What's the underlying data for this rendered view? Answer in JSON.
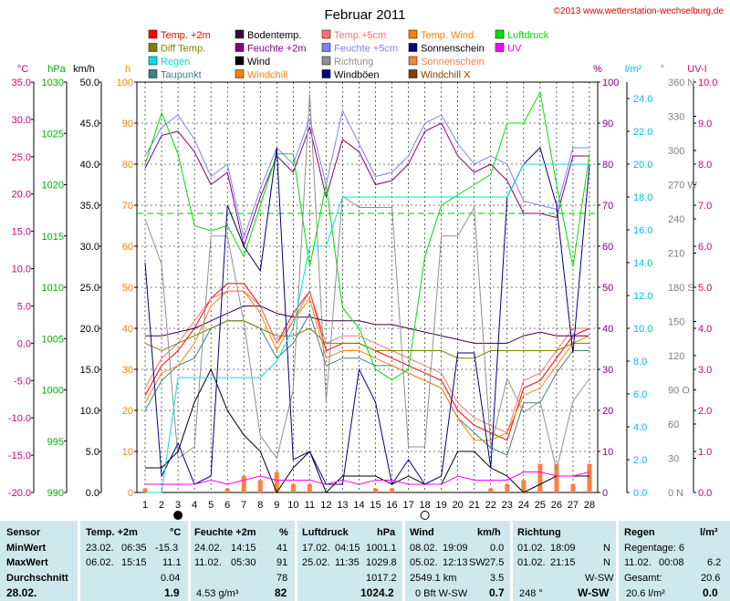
{
  "chart_data": {
    "type": "line",
    "title": "Februar 2011",
    "copyright": "©2013 www.wetterstation-wechselburg.de",
    "days": [
      1,
      2,
      3,
      4,
      5,
      6,
      7,
      8,
      9,
      10,
      11,
      12,
      13,
      14,
      15,
      16,
      17,
      18,
      19,
      20,
      21,
      22,
      23,
      24,
      25,
      26,
      27,
      28
    ],
    "axes": {
      "temp_c": {
        "unit": "°C",
        "color": "#d0007a",
        "ticks": [
          "35.0",
          "30.0",
          "25.0",
          "20.0",
          "15.0",
          "10.0",
          "5.0",
          "0.0",
          "-5.0",
          "-10.0",
          "-15.0",
          "-20.0"
        ],
        "range": [
          -20,
          35
        ]
      },
      "pressure_hpa": {
        "unit": "hPa",
        "color": "#00b000",
        "ticks": [
          "1030",
          "1025",
          "1020",
          "1015",
          "1010",
          "1005",
          "1000",
          "995",
          "990"
        ],
        "range": [
          990,
          1030
        ]
      },
      "wind_kmh": {
        "unit": "km/h",
        "color": "#000000",
        "ticks": [
          "50.0",
          "45.0",
          "40.0",
          "35.0",
          "30.0",
          "25.0",
          "20.0",
          "15.0",
          "10.0",
          "5.0",
          "0.0"
        ],
        "range": [
          0,
          50
        ]
      },
      "sun_h": {
        "unit": "h",
        "color": "#ff8000",
        "ticks": [
          "100",
          "90",
          "80",
          "70",
          "60",
          "50",
          "40",
          "30",
          "20",
          "10",
          "0"
        ],
        "range": [
          0,
          100
        ]
      },
      "humidity_pct": {
        "unit": "%",
        "color": "#800080",
        "ticks": [
          "100",
          "90",
          "80",
          "70",
          "60",
          "50",
          "40",
          "30",
          "20",
          "10",
          "0"
        ],
        "range": [
          0,
          100
        ]
      },
      "rain_lm2": {
        "unit": "l/m²",
        "color": "#00c0e0",
        "ticks": [
          "24.0",
          "22.0",
          "20.0",
          "18.0",
          "16.0",
          "14.0",
          "12.0",
          "10.0",
          "8.0",
          "6.0",
          "4.0",
          "2.0",
          "0.0"
        ],
        "range": [
          0,
          25
        ]
      },
      "direction_deg": {
        "unit": "°",
        "color": "#808080",
        "ticks": [
          "360 N",
          "330",
          "300",
          "270 W",
          "240",
          "210",
          "180 S",
          "150",
          "120",
          "90 O",
          "60",
          "30",
          "0 N"
        ],
        "range": [
          0,
          360
        ]
      },
      "uv": {
        "unit": "UV-I",
        "color": "#d0007a",
        "ticks": [
          "10.0",
          "9.0",
          "8.0",
          "7.0",
          "6.0",
          "5.0",
          "4.0",
          "3.0",
          "2.0",
          "1.0",
          "0.0"
        ],
        "range": [
          0,
          10
        ]
      }
    },
    "legend": [
      {
        "name": "Temp. +2m",
        "color": "#ff0000"
      },
      {
        "name": "Diff Temp.",
        "color": "#808000"
      },
      {
        "name": "Regen",
        "color": "#00e0e0"
      },
      {
        "name": "Taupunkt",
        "color": "#408080"
      },
      {
        "name": "Bodentemp.",
        "color": "#400040"
      },
      {
        "name": "Feuchte +2m",
        "color": "#800080"
      },
      {
        "name": "Wind",
        "color": "#000000"
      },
      {
        "name": "Windchill",
        "color": "#ff8000"
      },
      {
        "name": "Temp.+5cm",
        "color": "#ff7070"
      },
      {
        "name": "Feuchte +5cm",
        "color": "#8080ff"
      },
      {
        "name": "Richtung",
        "color": "#909090"
      },
      {
        "name": "Windböen",
        "color": "#000080"
      },
      {
        "name": "Temp. Wind",
        "color": "#ff8000"
      },
      {
        "name": "Sonnenschein",
        "color": "#000080"
      },
      {
        "name": "Sonnenschein",
        "color": "#ff8040"
      },
      {
        "name": "Windchill X",
        "color": "#804000"
      },
      {
        "name": "Luftdruck",
        "color": "#00e000"
      },
      {
        "name": "UV",
        "color": "#ff00ff"
      }
    ],
    "luftdruck_mean_hpa": 1017.2,
    "series": [
      {
        "name": "Temp. +2m",
        "axis": "temp_c",
        "color": "#ff0000",
        "values": [
          -7,
          -3,
          -1,
          2,
          6,
          8,
          8,
          5,
          0,
          4,
          7,
          -1,
          0,
          0,
          -1,
          -2,
          -3,
          -4,
          -5,
          -9,
          -11,
          -12,
          -13,
          -6,
          -5,
          -2,
          1,
          2
        ]
      },
      {
        "name": "Temp.+5cm",
        "axis": "temp_c",
        "color": "#ff7070",
        "values": [
          -6,
          -2,
          0,
          3,
          6,
          7,
          7,
          5,
          0,
          3,
          7,
          0,
          1,
          1,
          0,
          -1,
          -2,
          -3,
          -4,
          -8,
          -10,
          -11,
          -12,
          -5,
          -4,
          -1,
          2,
          2
        ]
      },
      {
        "name": "Bodentemp.",
        "axis": "temp_c",
        "color": "#400040",
        "values": [
          1,
          1,
          1.5,
          2,
          3,
          4,
          5,
          5,
          4,
          3.5,
          3.5,
          3,
          3,
          3,
          2.5,
          2.5,
          2,
          1.5,
          1,
          0.5,
          0,
          0,
          0,
          1,
          1.5,
          1,
          1,
          1
        ]
      },
      {
        "name": "Taupunkt",
        "axis": "temp_c",
        "color": "#408080",
        "values": [
          -9,
          -5,
          -3,
          -2,
          2,
          3,
          3,
          2,
          -2,
          0,
          4,
          -3,
          -2,
          -2,
          -3,
          -3,
          -4,
          -5,
          -6,
          -10,
          -12,
          -14,
          -15,
          -8,
          -8,
          -4,
          -1,
          -1
        ]
      },
      {
        "name": "Windchill",
        "axis": "temp_c",
        "color": "#ff8000",
        "values": [
          -8,
          -4,
          -3,
          0,
          5,
          7,
          7,
          4,
          -1,
          3,
          6,
          -2,
          -1,
          -1,
          -2,
          -3,
          -4,
          -5,
          -6,
          -10,
          -13,
          -13,
          -12,
          -7,
          -6,
          -3,
          0,
          1
        ]
      },
      {
        "name": "Diff Temp.",
        "axis": "temp_c",
        "color": "#808000",
        "values": [
          0,
          -1,
          0,
          1,
          2,
          3,
          3,
          2,
          1,
          1,
          2,
          0,
          0,
          0,
          -1,
          -1,
          -1,
          -1,
          -1,
          -2,
          -2,
          -1,
          -1,
          -1,
          -1,
          -1,
          0,
          0
        ]
      },
      {
        "name": "Feuchte +2m",
        "axis": "humidity_pct",
        "color": "#800080",
        "values": [
          79,
          87,
          88,
          83,
          75,
          78,
          60,
          72,
          82,
          78,
          89,
          72,
          86,
          83,
          75,
          76,
          80,
          88,
          90,
          82,
          78,
          80,
          76,
          68,
          68,
          67,
          82,
          82
        ]
      },
      {
        "name": "Feuchte +5cm",
        "axis": "humidity_pct",
        "color": "#8080ff",
        "values": [
          82,
          89,
          92,
          86,
          77,
          80,
          62,
          74,
          84,
          80,
          91,
          75,
          93,
          85,
          77,
          78,
          82,
          90,
          92,
          85,
          80,
          82,
          80,
          71,
          70,
          69,
          84,
          84
        ]
      },
      {
        "name": "Luftdruck",
        "axis": "pressure_hpa",
        "color": "#00e000",
        "values": [
          1022,
          1027,
          1023,
          1016,
          1015.5,
          1016,
          1013,
          1018,
          1023,
          1023,
          1012,
          1020,
          1008,
          1006,
          1002,
          1001,
          1002,
          1013,
          1018,
          1019,
          1020,
          1021,
          1026,
          1026,
          1029,
          1020,
          1012,
          1023
        ]
      },
      {
        "name": "Richtung",
        "axis": "direction_deg",
        "color": "#909090",
        "values": [
          240,
          200,
          30,
          40,
          225,
          225,
          150,
          50,
          30,
          90,
          350,
          80,
          260,
          250,
          250,
          250,
          40,
          40,
          225,
          225,
          250,
          40,
          100,
          70,
          80,
          20,
          80,
          100
        ]
      },
      {
        "name": "Wind",
        "axis": "wind_kmh",
        "color": "#000000",
        "values": [
          3,
          3,
          5,
          11,
          15,
          10,
          7,
          5,
          0,
          3,
          5,
          0,
          2,
          2,
          2,
          1,
          2,
          1,
          1,
          5,
          5,
          3,
          2,
          0,
          1,
          2,
          2,
          2
        ]
      },
      {
        "name": "Windböen",
        "axis": "wind_kmh",
        "color": "#000080",
        "values": [
          28,
          2,
          6,
          1,
          2,
          35,
          30,
          27,
          42,
          4,
          5,
          1,
          1,
          15,
          11,
          1,
          4,
          1,
          2,
          17,
          17,
          3,
          36,
          40,
          42,
          35,
          17,
          40
        ]
      },
      {
        "name": "Regen",
        "axis": "rain_lm2",
        "color": "#00e0e0",
        "values": [
          0,
          0,
          7,
          7,
          7,
          7,
          7,
          7,
          8,
          10,
          15,
          15,
          18,
          18,
          18,
          18,
          18,
          18,
          18,
          18,
          18,
          18,
          18,
          20,
          20,
          20,
          20,
          20
        ]
      },
      {
        "name": "UV",
        "axis": "uv",
        "color": "#ff00ff",
        "values": [
          0.2,
          0.2,
          0.2,
          0.2,
          0.3,
          0.2,
          0.3,
          0.4,
          0.3,
          0.3,
          0.3,
          0.2,
          0.3,
          0.2,
          0.3,
          0.3,
          0.2,
          0.2,
          0.2,
          0.4,
          0.3,
          0.3,
          0.3,
          0.5,
          0.5,
          0.4,
          0.4,
          0.5
        ]
      },
      {
        "name": "Sonnenschein",
        "axis": "sun_h",
        "color": "#ff8040",
        "kind": "bar",
        "values": [
          1,
          0,
          0,
          0,
          0,
          1,
          4,
          3,
          5,
          2,
          2,
          0,
          0,
          0,
          1,
          1,
          0,
          0,
          0,
          0,
          0,
          1,
          2,
          3,
          7,
          7,
          2,
          7
        ]
      }
    ],
    "moon_phases": [
      {
        "day": 3,
        "phase": "new"
      },
      {
        "day": 18,
        "phase": "full"
      }
    ]
  },
  "stats": {
    "date_label": "28.02.",
    "rows": [
      "Sensor",
      "MinWert",
      "MaxWert",
      "Durchschnitt"
    ],
    "temp": {
      "header": "Temp. +2m",
      "unit": "°C",
      "min": {
        "date": "23.02.",
        "time": "06:35",
        "value": "-15.3"
      },
      "max": {
        "date": "06.02.",
        "time": "15:15",
        "value": "11.1"
      },
      "avg": "0.04",
      "current": "1.9"
    },
    "humidity": {
      "header": "Feuchte +2m",
      "unit": "%",
      "min": {
        "date": "24.02.",
        "time": "14:15",
        "value": "41"
      },
      "max": {
        "date": "11.02.",
        "time": "05:30",
        "value": "91"
      },
      "avg": "78",
      "extra": "4.53 g/m³",
      "current": "82"
    },
    "pressure": {
      "header": "Luftdruck",
      "unit": "hPa",
      "min": {
        "date": "17.02.",
        "time": "04:15",
        "value": "1001.1"
      },
      "max": {
        "date": "25.02.",
        "time": "11:35",
        "value": "1029.8"
      },
      "avg": "1017.2",
      "current": "1024.2"
    },
    "wind": {
      "header": "Wind",
      "unit": "km/h",
      "min": {
        "date": "08.02.",
        "time": "19:09",
        "value": "0.0"
      },
      "max": {
        "date": "05.02.",
        "time": "12:13",
        "dir": "SW",
        "value": "27.5"
      },
      "avg_total": "2549.1 km",
      "avg": "3.5",
      "current_bft": "0 Bft W-SW",
      "current": "0.7"
    },
    "direction": {
      "header": "Richtung",
      "min": {
        "date": "01.02.",
        "time": "18:09",
        "value": "N"
      },
      "max": {
        "date": "01.02.",
        "time": "21:15",
        "value": "N"
      },
      "avg": "W-SW",
      "current_deg": "248 °",
      "current": "W-SW"
    },
    "rain": {
      "header": "Regen",
      "unit": "l/m²",
      "raindays": "Regentage: 6",
      "max": {
        "date": "11.02.",
        "time": "00:08",
        "value": "6.2"
      },
      "total_label": "Gesamt:",
      "total": "20.6",
      "current_label": "20.6 l/m²",
      "current": "0.0"
    }
  }
}
